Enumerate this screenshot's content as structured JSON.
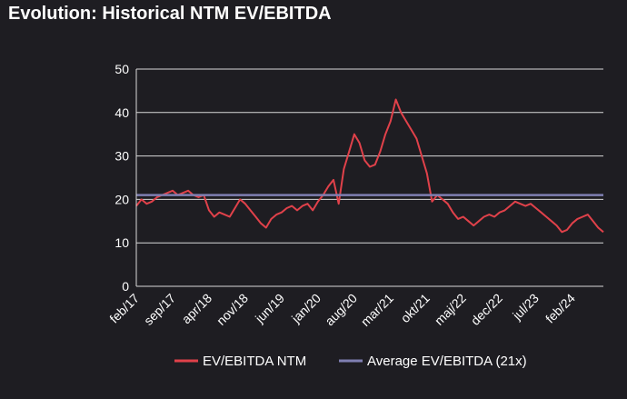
{
  "title": "Evolution: Historical NTM EV/EBITDA",
  "colors": {
    "background": "#1e1d22",
    "series_line": "#e0414a",
    "average_line": "#7f7fb2",
    "grid": "#d9d9d9",
    "text": "#ffffff"
  },
  "chart_data": {
    "type": "line",
    "title": "Evolution: Historical NTM EV/EBITDA",
    "xlabel": "",
    "ylabel": "",
    "ylim": [
      0,
      50
    ],
    "yticks": [
      0,
      10,
      20,
      30,
      40,
      50
    ],
    "xlim": [
      "2017-02",
      "2024-08"
    ],
    "xtick_labels": [
      "feb/17",
      "sep/17",
      "apr/18",
      "nov/18",
      "jun/19",
      "jan/20",
      "aug/20",
      "mar/21",
      "okt/21",
      "maj/22",
      "dec/22",
      "jul/23",
      "feb/24"
    ],
    "xtick_dates": [
      "2017-02",
      "2017-09",
      "2018-04",
      "2018-11",
      "2019-06",
      "2020-01",
      "2020-08",
      "2021-03",
      "2021-10",
      "2022-05",
      "2022-12",
      "2023-07",
      "2024-02"
    ],
    "grid": true,
    "legend_position": "bottom",
    "series": [
      {
        "name": "EV/EBITDA NTM",
        "x": [
          "2017-02",
          "2017-03",
          "2017-04",
          "2017-05",
          "2017-06",
          "2017-07",
          "2017-08",
          "2017-09",
          "2017-10",
          "2017-11",
          "2017-12",
          "2018-01",
          "2018-02",
          "2018-03",
          "2018-04",
          "2018-05",
          "2018-06",
          "2018-07",
          "2018-08",
          "2018-09",
          "2018-10",
          "2018-11",
          "2018-12",
          "2019-01",
          "2019-02",
          "2019-03",
          "2019-04",
          "2019-05",
          "2019-06",
          "2019-07",
          "2019-08",
          "2019-09",
          "2019-10",
          "2019-11",
          "2019-12",
          "2020-01",
          "2020-02",
          "2020-03",
          "2020-04",
          "2020-05",
          "2020-06",
          "2020-07",
          "2020-08",
          "2020-09",
          "2020-10",
          "2020-11",
          "2020-12",
          "2021-01",
          "2021-02",
          "2021-03",
          "2021-04",
          "2021-05",
          "2021-06",
          "2021-07",
          "2021-08",
          "2021-09",
          "2021-10",
          "2021-11",
          "2021-12",
          "2022-01",
          "2022-02",
          "2022-03",
          "2022-04",
          "2022-05",
          "2022-06",
          "2022-07",
          "2022-08",
          "2022-09",
          "2022-10",
          "2022-11",
          "2022-12",
          "2023-01",
          "2023-02",
          "2023-03",
          "2023-04",
          "2023-05",
          "2023-06",
          "2023-07",
          "2023-08",
          "2023-09",
          "2023-10",
          "2023-11",
          "2023-12",
          "2024-01",
          "2024-02",
          "2024-03",
          "2024-04",
          "2024-05",
          "2024-06",
          "2024-07",
          "2024-08"
        ],
        "values": [
          18.5,
          20.0,
          19.0,
          19.5,
          20.5,
          21.0,
          21.5,
          22.0,
          21.0,
          21.5,
          22.0,
          21.0,
          20.5,
          21.0,
          17.5,
          16.0,
          17.0,
          16.5,
          16.0,
          18.0,
          20.0,
          19.0,
          17.5,
          16.0,
          14.5,
          13.5,
          15.5,
          16.5,
          17.0,
          18.0,
          18.5,
          17.5,
          18.5,
          19.0,
          17.5,
          19.5,
          21.0,
          23.0,
          24.5,
          19.0,
          27.0,
          31.0,
          35.0,
          33.0,
          29.0,
          27.5,
          28.0,
          31.0,
          35.0,
          38.0,
          43.0,
          40.0,
          38.0,
          36.0,
          34.0,
          30.0,
          26.0,
          19.5,
          21.0,
          20.0,
          19.0,
          17.0,
          15.5,
          16.0,
          15.0,
          14.0,
          15.0,
          16.0,
          16.5,
          16.0,
          17.0,
          17.5,
          18.5,
          19.5,
          19.0,
          18.5,
          19.0,
          18.0,
          17.0,
          16.0,
          15.0,
          14.0,
          12.5,
          13.0,
          14.5,
          15.5,
          16.0,
          16.5,
          15.0,
          13.5,
          12.5
        ]
      },
      {
        "name": "Average EV/EBITDA (21x)",
        "x": [
          "2017-02",
          "2024-08"
        ],
        "values": [
          21,
          21
        ]
      }
    ]
  }
}
